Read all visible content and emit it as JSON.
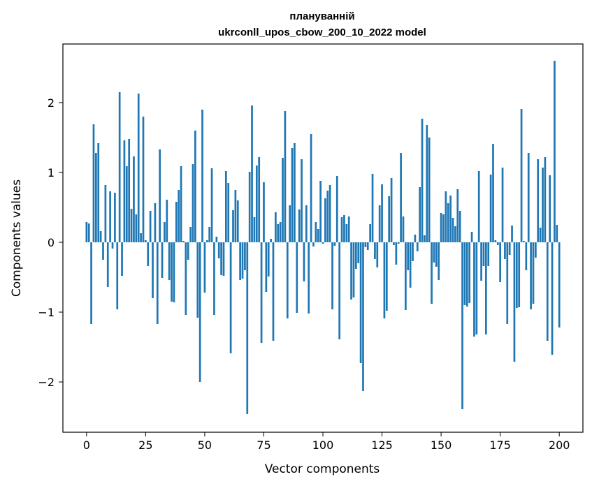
{
  "chart_data": {
    "type": "bar",
    "title": "плануванній",
    "subtitle": "ukrconll_upos_cbow_200_10_2022 model",
    "xlabel": "Vector components",
    "ylabel": "Components values",
    "xlim": [
      -10,
      210
    ],
    "ylim": [
      -2.72,
      2.84
    ],
    "xticks": [
      0,
      25,
      50,
      75,
      100,
      125,
      150,
      175,
      200
    ],
    "yticks": [
      -2,
      -1,
      0,
      1,
      2
    ],
    "color": "#1f77b4",
    "grid": false,
    "values": [
      0.29,
      0.27,
      -1.17,
      1.69,
      1.28,
      1.42,
      0.16,
      -0.25,
      0.82,
      -0.64,
      0.73,
      -0.09,
      0.71,
      -0.96,
      2.15,
      -0.48,
      1.46,
      1.09,
      1.48,
      0.48,
      1.23,
      0.4,
      2.13,
      0.13,
      1.8,
      0.03,
      -0.34,
      0.45,
      -0.8,
      0.56,
      -1.17,
      1.33,
      -0.51,
      0.29,
      0.61,
      -0.54,
      -0.85,
      -0.86,
      0.58,
      0.75,
      1.09,
      0.02,
      -1.04,
      -0.25,
      0.22,
      1.12,
      1.6,
      -1.08,
      -2.0,
      1.9,
      -0.72,
      0.03,
      0.22,
      1.06,
      -1.04,
      0.08,
      -0.23,
      -0.47,
      -0.48,
      1.02,
      0.85,
      -1.59,
      0.46,
      0.75,
      0.6,
      -0.54,
      -0.52,
      -0.4,
      -2.46,
      1.01,
      1.96,
      0.36,
      1.1,
      1.22,
      -1.44,
      0.86,
      -0.71,
      -0.49,
      0.05,
      -1.41,
      0.43,
      0.26,
      0.29,
      1.21,
      1.88,
      -1.09,
      0.53,
      1.35,
      1.42,
      -1.01,
      0.47,
      1.19,
      -0.56,
      0.53,
      -1.02,
      1.55,
      -0.06,
      0.29,
      0.19,
      0.88,
      -0.02,
      0.63,
      0.74,
      0.82,
      -0.96,
      -0.05,
      0.95,
      -1.39,
      0.36,
      0.39,
      0.26,
      0.37,
      -0.82,
      -0.79,
      -0.38,
      -0.3,
      -1.73,
      -2.13,
      -0.07,
      -0.11,
      0.26,
      0.98,
      -0.24,
      -0.36,
      0.53,
      0.83,
      -1.09,
      -0.98,
      0.66,
      0.92,
      -0.04,
      -0.32,
      -0.02,
      1.28,
      0.37,
      -0.97,
      -0.4,
      -0.65,
      -0.27,
      0.11,
      -0.13,
      0.79,
      1.77,
      0.1,
      1.68,
      1.5,
      -0.88,
      -0.29,
      -0.35,
      -0.54,
      0.42,
      0.4,
      0.73,
      0.56,
      0.67,
      0.35,
      0.23,
      0.76,
      0.45,
      -2.39,
      -0.9,
      -0.92,
      -0.87,
      0.15,
      -1.35,
      -1.32,
      1.02,
      -0.55,
      -0.34,
      -1.32,
      -0.34,
      0.97,
      1.41,
      0.03,
      -0.04,
      -0.57,
      1.07,
      -0.24,
      -1.17,
      -0.18,
      0.24,
      -1.71,
      -0.94,
      -0.93,
      1.91,
      0.02,
      -0.4,
      1.28,
      -0.96,
      -0.88,
      -0.22,
      1.19,
      0.21,
      1.07,
      1.22,
      -1.41,
      0.96,
      -1.61,
      2.6,
      0.25,
      -1.22
    ]
  }
}
